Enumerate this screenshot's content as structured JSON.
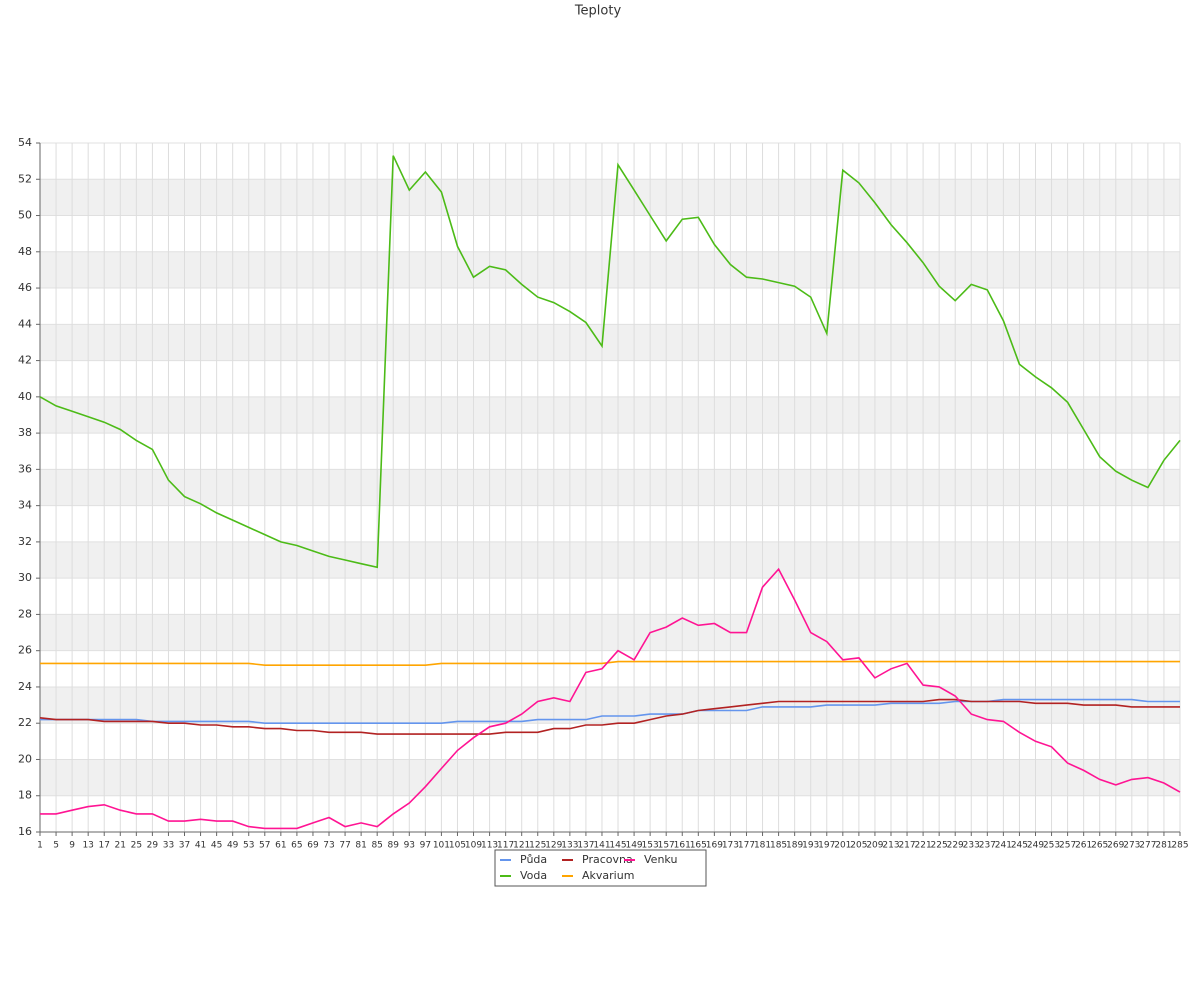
{
  "chart_data": {
    "type": "line",
    "title": "Teploty",
    "categories": [
      "1",
      "5",
      "9",
      "13",
      "17",
      "21",
      "25",
      "29",
      "33",
      "37",
      "41",
      "45",
      "49",
      "53",
      "57",
      "61",
      "65",
      "69",
      "73",
      "77",
      "81",
      "85",
      "89",
      "93",
      "97",
      "101",
      "105",
      "109",
      "113",
      "117",
      "121",
      "125",
      "129",
      "133",
      "137",
      "141",
      "145",
      "149",
      "153",
      "157",
      "161",
      "165",
      "169",
      "173",
      "177",
      "181",
      "185",
      "189",
      "193",
      "197",
      "201",
      "205",
      "209",
      "213",
      "217",
      "221",
      "225",
      "229",
      "233",
      "237",
      "241",
      "245",
      "249",
      "253",
      "257",
      "261",
      "265",
      "269",
      "273",
      "277",
      "281",
      "285"
    ],
    "ylim": [
      16,
      54
    ],
    "yticks": [
      16,
      18,
      20,
      22,
      24,
      26,
      28,
      30,
      32,
      34,
      36,
      38,
      40,
      42,
      44,
      46,
      48,
      50,
      52,
      54
    ],
    "grid": true,
    "series": [
      {
        "name": "Půda",
        "color": "#6495ed",
        "values": [
          22.2,
          22.2,
          22.2,
          22.2,
          22.2,
          22.2,
          22.2,
          22.1,
          22.1,
          22.1,
          22.1,
          22.1,
          22.1,
          22.1,
          22.0,
          22.0,
          22.0,
          22.0,
          22.0,
          22.0,
          22.0,
          22.0,
          22.0,
          22.0,
          22.0,
          22.0,
          22.1,
          22.1,
          22.1,
          22.1,
          22.1,
          22.2,
          22.2,
          22.2,
          22.2,
          22.4,
          22.4,
          22.4,
          22.5,
          22.5,
          22.5,
          22.7,
          22.7,
          22.7,
          22.7,
          22.9,
          22.9,
          22.9,
          22.9,
          23.0,
          23.0,
          23.0,
          23.0,
          23.1,
          23.1,
          23.1,
          23.1,
          23.2,
          23.2,
          23.2,
          23.3,
          23.3,
          23.3,
          23.3,
          23.3,
          23.3,
          23.3,
          23.3,
          23.3,
          23.2,
          23.2,
          23.2
        ]
      },
      {
        "name": "Voda",
        "color": "#4cbb17",
        "values": [
          40.0,
          39.5,
          39.2,
          38.9,
          38.6,
          38.2,
          37.6,
          37.1,
          35.4,
          34.5,
          34.1,
          33.6,
          33.2,
          32.8,
          32.4,
          32.0,
          31.8,
          31.5,
          31.2,
          31.0,
          30.8,
          30.6,
          53.3,
          51.4,
          52.4,
          51.3,
          48.3,
          46.6,
          47.2,
          47.0,
          46.2,
          45.5,
          45.2,
          44.7,
          44.1,
          42.8,
          52.8,
          51.4,
          50.0,
          48.6,
          49.8,
          49.9,
          48.4,
          47.3,
          46.6,
          46.5,
          46.3,
          46.1,
          45.5,
          43.5,
          52.5,
          51.8,
          50.7,
          49.5,
          48.5,
          47.4,
          46.1,
          45.3,
          46.2,
          45.9,
          44.2,
          41.8,
          41.1,
          40.5,
          39.7,
          38.2,
          36.7,
          35.9,
          35.4,
          35.0,
          36.5,
          37.6
        ]
      },
      {
        "name": "Pracovna",
        "color": "#b22222",
        "values": [
          22.3,
          22.2,
          22.2,
          22.2,
          22.1,
          22.1,
          22.1,
          22.1,
          22.0,
          22.0,
          21.9,
          21.9,
          21.8,
          21.8,
          21.7,
          21.7,
          21.6,
          21.6,
          21.5,
          21.5,
          21.5,
          21.4,
          21.4,
          21.4,
          21.4,
          21.4,
          21.4,
          21.4,
          21.4,
          21.5,
          21.5,
          21.5,
          21.7,
          21.7,
          21.9,
          21.9,
          22.0,
          22.0,
          22.2,
          22.4,
          22.5,
          22.7,
          22.8,
          22.9,
          23.0,
          23.1,
          23.2,
          23.2,
          23.2,
          23.2,
          23.2,
          23.2,
          23.2,
          23.2,
          23.2,
          23.2,
          23.3,
          23.3,
          23.2,
          23.2,
          23.2,
          23.2,
          23.1,
          23.1,
          23.1,
          23.0,
          23.0,
          23.0,
          22.9,
          22.9,
          22.9,
          22.9
        ]
      },
      {
        "name": "Akvarium",
        "color": "#ffa500",
        "values": [
          25.3,
          25.3,
          25.3,
          25.3,
          25.3,
          25.3,
          25.3,
          25.3,
          25.3,
          25.3,
          25.3,
          25.3,
          25.3,
          25.3,
          25.2,
          25.2,
          25.2,
          25.2,
          25.2,
          25.2,
          25.2,
          25.2,
          25.2,
          25.2,
          25.2,
          25.3,
          25.3,
          25.3,
          25.3,
          25.3,
          25.3,
          25.3,
          25.3,
          25.3,
          25.3,
          25.3,
          25.4,
          25.4,
          25.4,
          25.4,
          25.4,
          25.4,
          25.4,
          25.4,
          25.4,
          25.4,
          25.4,
          25.4,
          25.4,
          25.4,
          25.4,
          25.4,
          25.4,
          25.4,
          25.4,
          25.4,
          25.4,
          25.4,
          25.4,
          25.4,
          25.4,
          25.4,
          25.4,
          25.4,
          25.4,
          25.4,
          25.4,
          25.4,
          25.4,
          25.4,
          25.4,
          25.4
        ]
      },
      {
        "name": "Venku",
        "color": "#ff1493",
        "values": [
          17.0,
          17.0,
          17.2,
          17.4,
          17.5,
          17.2,
          17.0,
          17.0,
          16.6,
          16.6,
          16.7,
          16.6,
          16.6,
          16.3,
          16.2,
          16.2,
          16.2,
          16.5,
          16.8,
          16.3,
          16.5,
          16.3,
          17.0,
          17.6,
          18.5,
          19.5,
          20.5,
          21.2,
          21.8,
          22.0,
          22.5,
          23.2,
          23.4,
          23.2,
          24.8,
          25.0,
          26.0,
          25.5,
          27.0,
          27.3,
          27.8,
          27.4,
          27.5,
          27.0,
          27.0,
          29.5,
          30.5,
          28.8,
          27.0,
          26.5,
          25.5,
          25.6,
          24.5,
          25.0,
          25.3,
          24.1,
          24.0,
          23.5,
          22.5,
          22.2,
          22.1,
          21.5,
          21.0,
          20.7,
          19.8,
          19.4,
          18.9,
          18.6,
          18.9,
          19.0,
          18.7,
          18.2
        ]
      }
    ]
  }
}
